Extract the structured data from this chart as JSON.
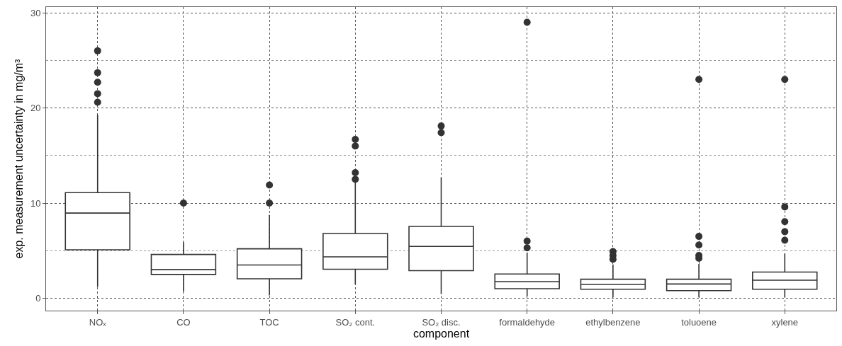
{
  "chart_data": {
    "type": "box",
    "xlabel": "component",
    "ylabel": "exp. measurement uncertainty in mg/m³",
    "categories": [
      "NOₓ",
      "CO",
      "TOC",
      "SO₂ cont.",
      "SO₂ disc.",
      "formaldehyde",
      "ethylbenzene",
      "toluoene",
      "xylene"
    ],
    "series": [
      {
        "color": "#333333",
        "boxes": [
          {
            "low": 1.2,
            "q1": 5.1,
            "median": 8.95,
            "q3": 11.1,
            "high": 19.3,
            "outliers": [
              26.0,
              23.7,
              22.7,
              21.5,
              20.6
            ]
          },
          {
            "low": 0.7,
            "q1": 2.5,
            "median": 3.0,
            "q3": 4.6,
            "high": 5.9,
            "outliers": [
              10.0
            ]
          },
          {
            "low": 0.3,
            "q1": 2.05,
            "median": 3.5,
            "q3": 5.2,
            "high": 8.75,
            "outliers": [
              10.0,
              11.9
            ]
          },
          {
            "low": 1.45,
            "q1": 3.05,
            "median": 4.35,
            "q3": 6.8,
            "high": 12.2,
            "outliers": [
              16.7,
              16.0,
              13.2,
              12.5
            ]
          },
          {
            "low": 0.45,
            "q1": 2.9,
            "median": 5.45,
            "q3": 7.55,
            "high": 12.7,
            "outliers": [
              18.1,
              17.4
            ]
          },
          {
            "low": 0.2,
            "q1": 1.0,
            "median": 1.75,
            "q3": 2.55,
            "high": 4.8,
            "outliers": [
              29.0,
              6.0,
              5.3
            ]
          },
          {
            "low": 0.1,
            "q1": 0.95,
            "median": 1.45,
            "q3": 2.0,
            "high": 3.55,
            "outliers": [
              4.9,
              4.5,
              4.1
            ]
          },
          {
            "low": 0.1,
            "q1": 0.8,
            "median": 1.5,
            "q3": 2.0,
            "high": 3.6,
            "outliers": [
              23.0,
              6.5,
              5.6,
              4.5,
              4.2
            ]
          },
          {
            "low": 0.1,
            "q1": 0.95,
            "median": 1.9,
            "q3": 2.75,
            "high": 4.7,
            "outliers": [
              23.0,
              9.6,
              8.05,
              7.0,
              6.1
            ]
          }
        ]
      }
    ],
    "ylim": [
      -1.3,
      30.6
    ],
    "yticks": [
      0,
      10,
      20,
      30
    ],
    "grid": true
  }
}
